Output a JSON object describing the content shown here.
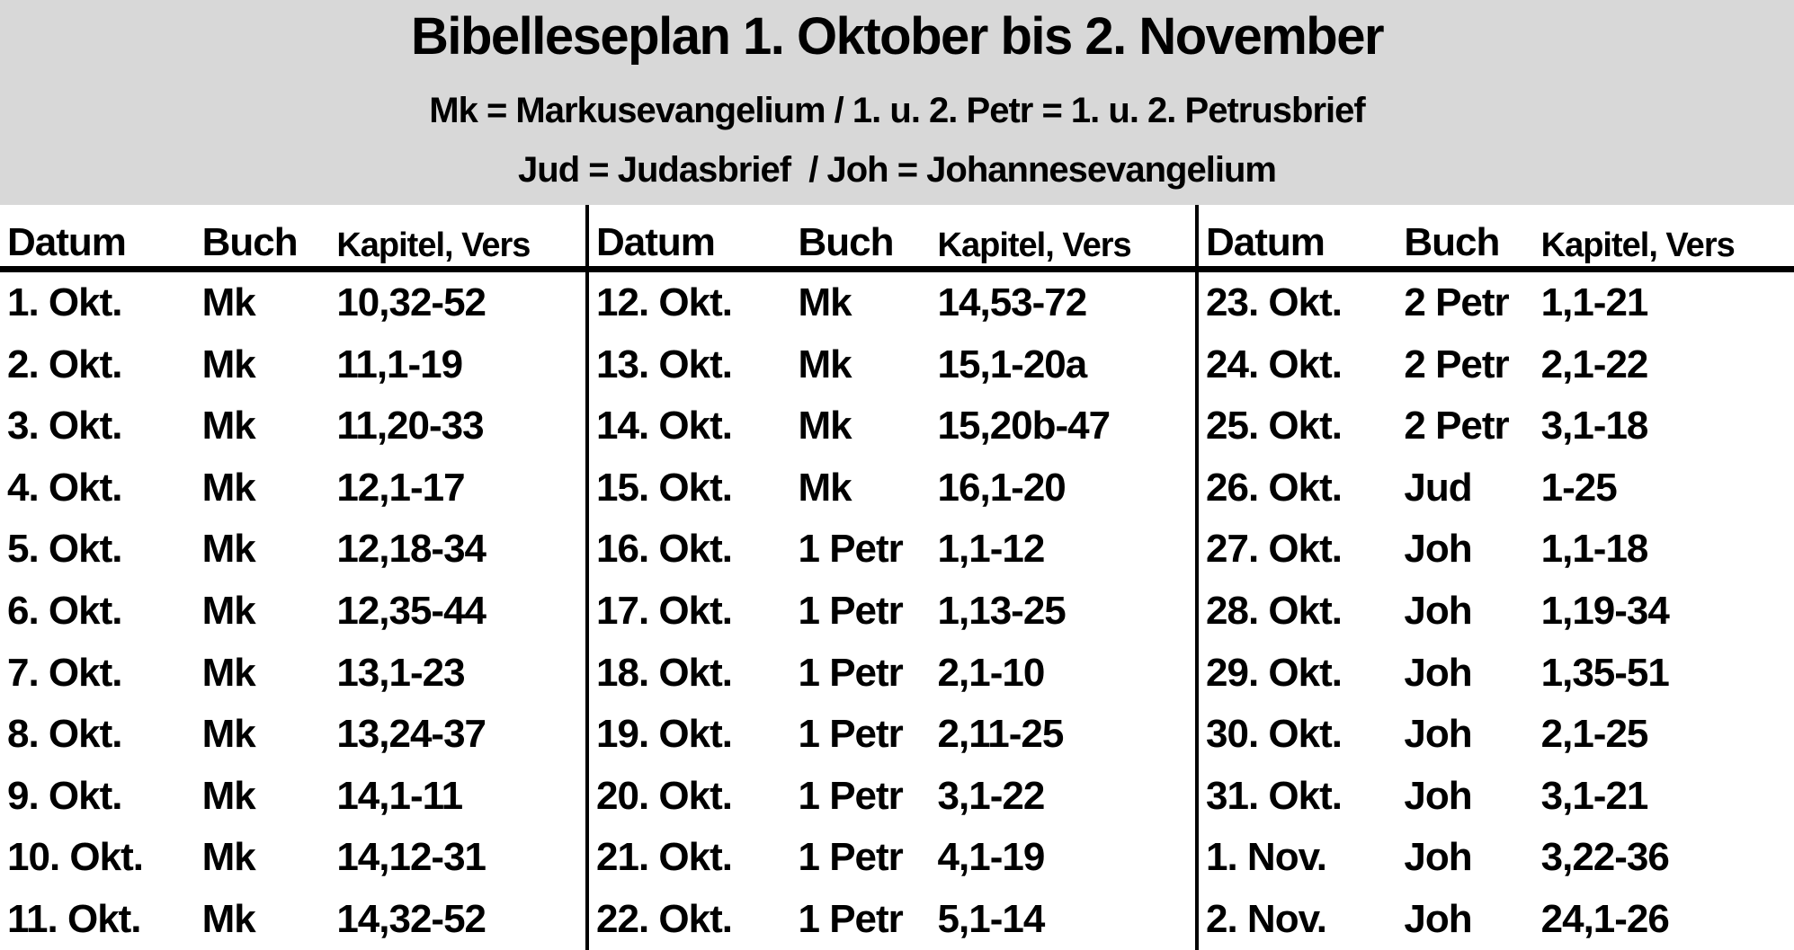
{
  "page": {
    "title": "Bibelleseplan 1. Oktober bis 2. November",
    "legend_line1": "Mk = Markusevangelium / 1. u. 2. Petr = 1. u. 2. Petrusbrief",
    "legend_line2": "Jud = Judasbrief  / Joh = Johannesevangelium"
  },
  "colors": {
    "band_background": "#d8d8d8",
    "table_background": "#ffffff",
    "text": "#000000",
    "rule": "#000000"
  },
  "table": {
    "headers": {
      "datum": "Datum",
      "buch": "Buch",
      "kapitel_vers": "Kapitel, Vers"
    },
    "groups": [
      {
        "rows": [
          {
            "datum": "1. Okt.",
            "buch": "Mk",
            "kapitel_vers": "10,32-52"
          },
          {
            "datum": "2. Okt.",
            "buch": "Mk",
            "kapitel_vers": "11,1-19"
          },
          {
            "datum": "3. Okt.",
            "buch": "Mk",
            "kapitel_vers": "11,20-33"
          },
          {
            "datum": "4. Okt.",
            "buch": "Mk",
            "kapitel_vers": "12,1-17"
          },
          {
            "datum": "5. Okt.",
            "buch": "Mk",
            "kapitel_vers": "12,18-34"
          },
          {
            "datum": "6. Okt.",
            "buch": "Mk",
            "kapitel_vers": "12,35-44"
          },
          {
            "datum": "7. Okt.",
            "buch": "Mk",
            "kapitel_vers": "13,1-23"
          },
          {
            "datum": "8. Okt.",
            "buch": "Mk",
            "kapitel_vers": "13,24-37"
          },
          {
            "datum": "9. Okt.",
            "buch": "Mk",
            "kapitel_vers": "14,1-11"
          },
          {
            "datum": "10. Okt.",
            "buch": "Mk",
            "kapitel_vers": "14,12-31"
          },
          {
            "datum": "11. Okt.",
            "buch": "Mk",
            "kapitel_vers": "14,32-52"
          }
        ]
      },
      {
        "rows": [
          {
            "datum": "12. Okt.",
            "buch": "Mk",
            "kapitel_vers": "14,53-72"
          },
          {
            "datum": "13. Okt.",
            "buch": "Mk",
            "kapitel_vers": "15,1-20a"
          },
          {
            "datum": "14. Okt.",
            "buch": "Mk",
            "kapitel_vers": "15,20b-47"
          },
          {
            "datum": "15. Okt.",
            "buch": "Mk",
            "kapitel_vers": "16,1-20"
          },
          {
            "datum": "16. Okt.",
            "buch": "1 Petr",
            "kapitel_vers": "1,1-12"
          },
          {
            "datum": "17. Okt.",
            "buch": "1 Petr",
            "kapitel_vers": "1,13-25"
          },
          {
            "datum": "18. Okt.",
            "buch": "1 Petr",
            "kapitel_vers": "2,1-10"
          },
          {
            "datum": "19. Okt.",
            "buch": "1 Petr",
            "kapitel_vers": "2,11-25"
          },
          {
            "datum": "20. Okt.",
            "buch": "1 Petr",
            "kapitel_vers": "3,1-22"
          },
          {
            "datum": "21. Okt.",
            "buch": "1 Petr",
            "kapitel_vers": "4,1-19"
          },
          {
            "datum": "22. Okt.",
            "buch": "1 Petr",
            "kapitel_vers": "5,1-14"
          }
        ]
      },
      {
        "rows": [
          {
            "datum": "23. Okt.",
            "buch": "2 Petr",
            "kapitel_vers": "1,1-21"
          },
          {
            "datum": "24. Okt.",
            "buch": "2 Petr",
            "kapitel_vers": "2,1-22"
          },
          {
            "datum": "25. Okt.",
            "buch": "2 Petr",
            "kapitel_vers": "3,1-18"
          },
          {
            "datum": "26. Okt.",
            "buch": "Jud",
            "kapitel_vers": "1-25"
          },
          {
            "datum": "27. Okt.",
            "buch": "Joh",
            "kapitel_vers": "1,1-18"
          },
          {
            "datum": "28. Okt.",
            "buch": "Joh",
            "kapitel_vers": "1,19-34"
          },
          {
            "datum": "29. Okt.",
            "buch": "Joh",
            "kapitel_vers": "1,35-51"
          },
          {
            "datum": "30. Okt.",
            "buch": "Joh",
            "kapitel_vers": "2,1-25"
          },
          {
            "datum": "31. Okt.",
            "buch": "Joh",
            "kapitel_vers": "3,1-21"
          },
          {
            "datum": "1. Nov.",
            "buch": "Joh",
            "kapitel_vers": "3,22-36"
          },
          {
            "datum": "2. Nov.",
            "buch": "Joh",
            "kapitel_vers": "24,1-26"
          }
        ]
      }
    ]
  }
}
